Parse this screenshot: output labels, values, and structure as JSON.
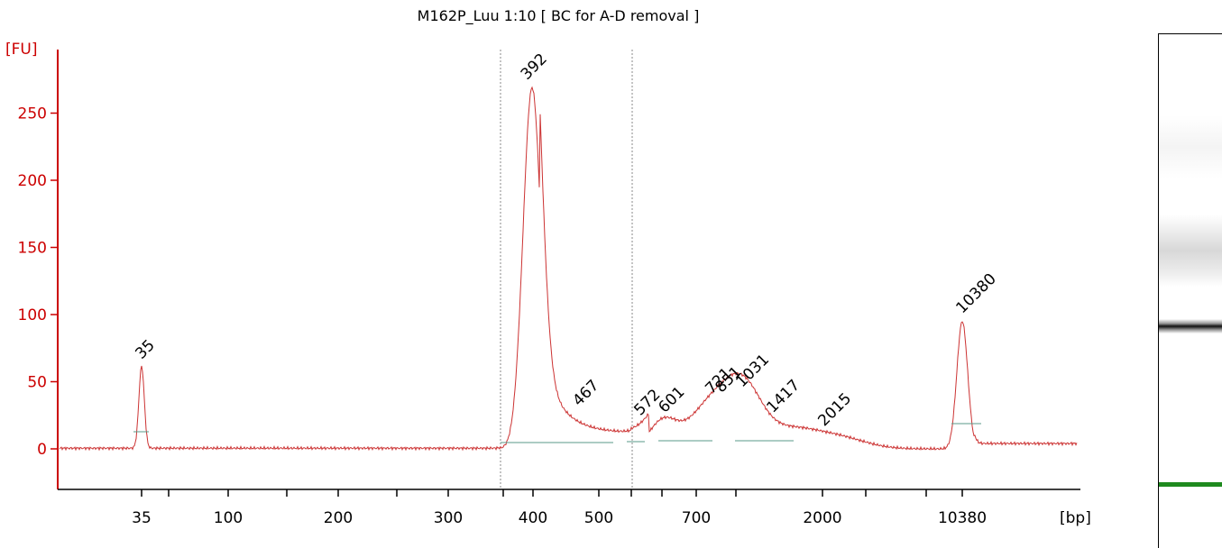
{
  "chart_data": {
    "type": "line",
    "title": "M162P_Luu 1:10  [ BC for A-D removal ]",
    "ylabel": "[FU]",
    "xlabel": "[bp]",
    "ylim": [
      -25,
      285
    ],
    "yticks": [
      0,
      50,
      100,
      150,
      200,
      250
    ],
    "xtick_labels": [
      "35",
      "100",
      "200",
      "300",
      "400",
      "500",
      "700",
      "2000",
      "10380"
    ],
    "peaks": [
      {
        "label": "35",
        "bp": 35,
        "fu": 61,
        "color": "#1e8a1e"
      },
      {
        "label": "392",
        "bp": 392,
        "fu": 269,
        "color": "#000000"
      },
      {
        "label": "467",
        "bp": 467,
        "fu": 26,
        "color": "#000000"
      },
      {
        "label": "572",
        "bp": 572,
        "fu": 19,
        "color": "#000000"
      },
      {
        "label": "601",
        "bp": 601,
        "fu": 21,
        "color": "#000000"
      },
      {
        "label": "721",
        "bp": 721,
        "fu": 35,
        "color": "#000000"
      },
      {
        "label": "851",
        "bp": 851,
        "fu": 36,
        "color": "#000000"
      },
      {
        "label": "1031",
        "bp": 1031,
        "fu": 40,
        "color": "#000000"
      },
      {
        "label": "1417",
        "bp": 1417,
        "fu": 21,
        "color": "#000000"
      },
      {
        "label": "2015",
        "bp": 2015,
        "fu": 11,
        "color": "#000000"
      },
      {
        "label": "10380",
        "bp": 10380,
        "fu": 95,
        "color": "#9933ee"
      }
    ],
    "grid": false,
    "line_color": "#cc3333",
    "baseline_color": "#5a9a8a"
  },
  "gel": {
    "upper_marker_color": "#9933ee",
    "lower_marker_color": "#1e8a1e"
  }
}
